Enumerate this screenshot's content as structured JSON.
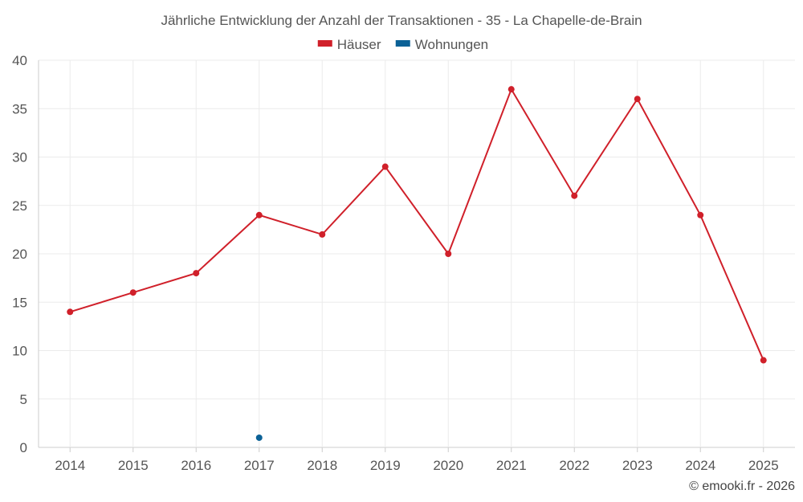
{
  "chart_data": {
    "type": "line",
    "title": "Jährliche Entwicklung der Anzahl der Transaktionen - 35 - La Chapelle-de-Brain",
    "categories": [
      "2014",
      "2015",
      "2016",
      "2017",
      "2018",
      "2019",
      "2020",
      "2021",
      "2022",
      "2023",
      "2024",
      "2025"
    ],
    "series": [
      {
        "name": "Häuser",
        "color": "#d0202a",
        "values": [
          14,
          16,
          18,
          24,
          22,
          29,
          20,
          37,
          26,
          36,
          24,
          9
        ]
      },
      {
        "name": "Wohnungen",
        "color": "#0b6196",
        "values": [
          null,
          null,
          null,
          1,
          null,
          null,
          null,
          null,
          null,
          null,
          null,
          null
        ]
      }
    ],
    "ylim": [
      0,
      40
    ],
    "yticks": [
      0,
      5,
      10,
      15,
      20,
      25,
      30,
      35,
      40
    ],
    "xlabel": "",
    "ylabel": "",
    "grid": true,
    "legend_position": "top-center"
  },
  "footer": {
    "credit": "© emooki.fr - 2026"
  },
  "colors": {
    "grid": "#ebebeb",
    "axis": "#cccccc",
    "text": "#555555"
  }
}
